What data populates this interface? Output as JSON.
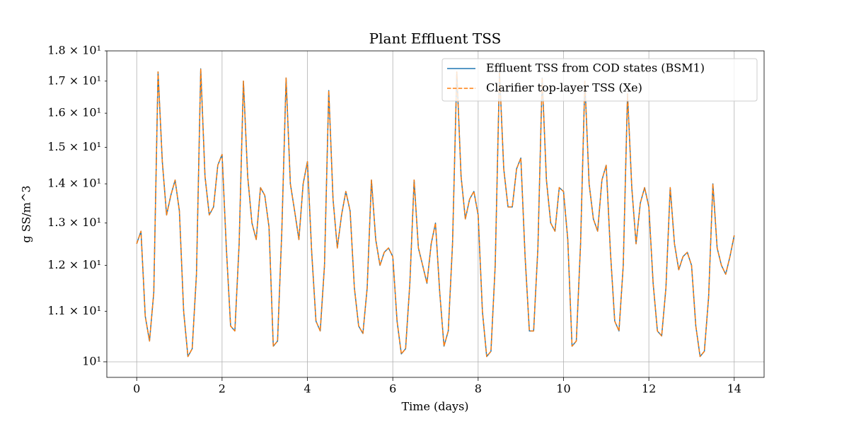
{
  "chart_data": {
    "type": "line",
    "title": "Plant Effluent TSS",
    "xlabel": "Time (days)",
    "ylabel": "g SS/m^3",
    "xlim": [
      -0.7,
      14.7
    ],
    "xticks": [
      0,
      2,
      4,
      6,
      8,
      10,
      12,
      14
    ],
    "ylim": [
      9.71,
      18.0
    ],
    "yscale": "log",
    "y_major_ticks": [
      {
        "value": 10,
        "label": "10¹"
      }
    ],
    "y_minor_ticks": [
      {
        "value": 11,
        "label": "1.1 × 10¹"
      },
      {
        "value": 12,
        "label": "1.2 × 10¹"
      },
      {
        "value": 13,
        "label": "1.3 × 10¹"
      },
      {
        "value": 14,
        "label": "1.4 × 10¹"
      },
      {
        "value": 15,
        "label": "1.5 × 10¹"
      },
      {
        "value": 16,
        "label": "1.6 × 10¹"
      },
      {
        "value": 17,
        "label": "1.7 × 10¹"
      },
      {
        "value": 18,
        "label": "1.8 × 10¹"
      }
    ],
    "grid": true,
    "legend": "upper right",
    "x": [
      0,
      0.1,
      0.2,
      0.3,
      0.4,
      0.5,
      0.6,
      0.7,
      0.8,
      0.9,
      1,
      1.1,
      1.2,
      1.3,
      1.4,
      1.5,
      1.6,
      1.7,
      1.8,
      1.9,
      2,
      2.1,
      2.2,
      2.3,
      2.4,
      2.5,
      2.6,
      2.7,
      2.8,
      2.9,
      3,
      3.1,
      3.2,
      3.3,
      3.4,
      3.5,
      3.6,
      3.7,
      3.8,
      3.9,
      4,
      4.1,
      4.2,
      4.3,
      4.4,
      4.5,
      4.6,
      4.7,
      4.8,
      4.9,
      5,
      5.1,
      5.2,
      5.3,
      5.4,
      5.5,
      5.6,
      5.7,
      5.8,
      5.9,
      6,
      6.1,
      6.2,
      6.3,
      6.4,
      6.5,
      6.6,
      6.7,
      6.8,
      6.9,
      7,
      7.1,
      7.2,
      7.3,
      7.4,
      7.5,
      7.6,
      7.7,
      7.8,
      7.9,
      8,
      8.1,
      8.2,
      8.3,
      8.4,
      8.5,
      8.6,
      8.7,
      8.8,
      8.9,
      9,
      9.1,
      9.2,
      9.3,
      9.4,
      9.5,
      9.6,
      9.7,
      9.8,
      9.9,
      10,
      10.1,
      10.2,
      10.3,
      10.4,
      10.5,
      10.6,
      10.7,
      10.8,
      10.9,
      11,
      11.1,
      11.2,
      11.3,
      11.4,
      11.5,
      11.6,
      11.7,
      11.8,
      11.9,
      12,
      12.1,
      12.2,
      12.3,
      12.4,
      12.5,
      12.6,
      12.7,
      12.8,
      12.9,
      13,
      13.1,
      13.2,
      13.3,
      13.4,
      13.5,
      13.6,
      13.7,
      13.8,
      13.9,
      14
    ],
    "series": [
      {
        "name": "Effluent TSS from COD states (BSM1)",
        "color": "#1f77b4",
        "dash": "solid",
        "values": [
          12.5,
          12.8,
          10.9,
          10.4,
          11.4,
          17.3,
          14.6,
          13.2,
          13.7,
          14.1,
          13.3,
          11.0,
          10.1,
          10.25,
          11.8,
          17.4,
          14.2,
          13.2,
          13.4,
          14.5,
          14.8,
          12.4,
          10.7,
          10.6,
          12.5,
          17.0,
          14.2,
          13.0,
          12.6,
          13.9,
          13.7,
          12.9,
          10.3,
          10.4,
          12.8,
          17.1,
          14.0,
          13.3,
          12.6,
          14.0,
          14.6,
          12.3,
          10.8,
          10.6,
          12.0,
          16.7,
          13.6,
          12.4,
          13.2,
          13.8,
          13.3,
          11.5,
          10.7,
          10.55,
          11.5,
          14.1,
          12.6,
          12.0,
          12.3,
          12.4,
          12.2,
          10.8,
          10.15,
          10.25,
          11.6,
          14.1,
          12.4,
          12.0,
          11.6,
          12.5,
          13.0,
          11.4,
          10.3,
          10.6,
          12.5,
          17.3,
          14.2,
          13.1,
          13.6,
          13.8,
          13.2,
          11.0,
          10.1,
          10.2,
          12.0,
          17.3,
          14.4,
          13.4,
          13.4,
          14.4,
          14.7,
          12.2,
          10.6,
          10.6,
          12.4,
          17.1,
          14.1,
          13.0,
          12.8,
          13.9,
          13.8,
          12.6,
          10.3,
          10.4,
          12.5,
          17.0,
          14.0,
          13.1,
          12.8,
          14.1,
          14.5,
          12.3,
          10.8,
          10.6,
          12.0,
          16.6,
          13.9,
          12.5,
          13.5,
          13.9,
          13.4,
          11.6,
          10.6,
          10.5,
          11.5,
          13.9,
          12.5,
          11.9,
          12.2,
          12.3,
          12.0,
          10.7,
          10.1,
          10.2,
          11.3,
          14.0,
          12.4,
          12.0,
          11.8,
          12.2,
          12.7
        ]
      },
      {
        "name": "Clarifier top-layer TSS (Xe)",
        "color": "#ff7f0e",
        "dash": "dashed",
        "values": [
          12.5,
          12.8,
          10.9,
          10.4,
          11.4,
          17.3,
          14.6,
          13.2,
          13.7,
          14.1,
          13.3,
          11.0,
          10.1,
          10.25,
          11.8,
          17.4,
          14.2,
          13.2,
          13.4,
          14.5,
          14.8,
          12.4,
          10.7,
          10.6,
          12.5,
          17.0,
          14.2,
          13.0,
          12.6,
          13.9,
          13.7,
          12.9,
          10.3,
          10.4,
          12.8,
          17.1,
          14.0,
          13.3,
          12.6,
          14.0,
          14.6,
          12.3,
          10.8,
          10.6,
          12.0,
          16.7,
          13.6,
          12.4,
          13.2,
          13.8,
          13.3,
          11.5,
          10.7,
          10.55,
          11.5,
          14.1,
          12.6,
          12.0,
          12.3,
          12.4,
          12.2,
          10.8,
          10.15,
          10.25,
          11.6,
          14.1,
          12.4,
          12.0,
          11.6,
          12.5,
          13.0,
          11.4,
          10.3,
          10.6,
          12.5,
          17.3,
          14.2,
          13.1,
          13.6,
          13.8,
          13.2,
          11.0,
          10.1,
          10.2,
          12.0,
          17.3,
          14.4,
          13.4,
          13.4,
          14.4,
          14.7,
          12.2,
          10.6,
          10.6,
          12.4,
          17.1,
          14.1,
          13.0,
          12.8,
          13.9,
          13.8,
          12.6,
          10.3,
          10.4,
          12.5,
          17.0,
          14.0,
          13.1,
          12.8,
          14.1,
          14.5,
          12.3,
          10.8,
          10.6,
          12.0,
          16.6,
          13.9,
          12.5,
          13.5,
          13.9,
          13.4,
          11.6,
          10.6,
          10.5,
          11.5,
          13.9,
          12.5,
          11.9,
          12.2,
          12.3,
          12.0,
          10.7,
          10.1,
          10.2,
          11.3,
          14.0,
          12.4,
          12.0,
          11.8,
          12.2,
          12.7
        ]
      }
    ]
  }
}
